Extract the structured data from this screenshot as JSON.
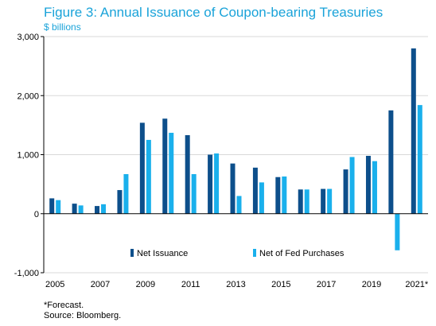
{
  "title": "Figure 3: Annual Issuance of Coupon-bearing Treasuries",
  "subtitle": "$ billions",
  "footnotes": [
    "*Forecast.",
    "Source: Bloomberg."
  ],
  "colors": {
    "net": "#0d4f8b",
    "fed": "#1ab0ec",
    "title": "#1aa3d9",
    "grid": "#d9d9d9"
  },
  "chart_data": {
    "type": "bar",
    "categories": [
      "2005",
      "2006",
      "2007",
      "2008",
      "2009",
      "2010",
      "2011",
      "2012",
      "2013",
      "2014",
      "2015",
      "2016",
      "2017",
      "2018",
      "2019",
      "2020",
      "2021*"
    ],
    "x_tick_labels": [
      "2005",
      "2007",
      "2009",
      "2011",
      "2013",
      "2015",
      "2017",
      "2019",
      "2021*"
    ],
    "series": [
      {
        "name": "Net Issuance",
        "values": [
          260,
          170,
          130,
          400,
          1540,
          1610,
          1330,
          1000,
          850,
          780,
          620,
          410,
          420,
          750,
          980,
          1750,
          2800
        ]
      },
      {
        "name": "Net of Fed Purchases",
        "values": [
          230,
          140,
          160,
          670,
          1250,
          1370,
          670,
          1020,
          300,
          530,
          630,
          410,
          420,
          960,
          890,
          -620,
          1840
        ]
      }
    ],
    "ylim": [
      -1000,
      3000
    ],
    "yticks": [
      -1000,
      0,
      1000,
      2000,
      3000
    ],
    "ytick_labels": [
      "-1,000",
      "0",
      "1,000",
      "2,000",
      "3,000"
    ],
    "grid": true,
    "legend_position": "bottom-center"
  }
}
